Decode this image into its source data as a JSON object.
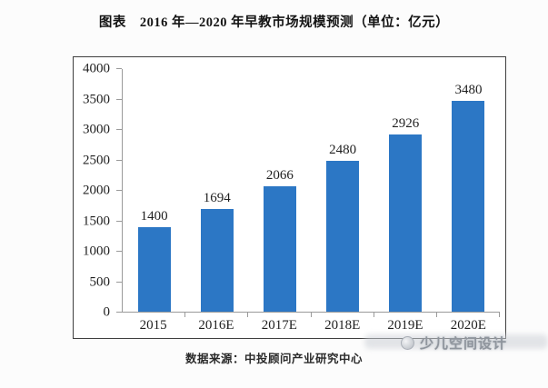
{
  "page": {
    "title": "图表　2016 年—2020 年早教市场规模预测（单位：亿元）",
    "footer_source": "数据来源：中投顾问产业研究中心",
    "watermark_text": "少儿空间设计"
  },
  "colors": {
    "bar": "#2C77C5",
    "axis_line": "#9A9A9A",
    "frame_border": "#3F3F3F",
    "label_text": "#1F1F1F",
    "watermark_text": "#8F959D",
    "watermark_bg": "#CDD1D7"
  },
  "chart_data": {
    "type": "bar",
    "title": "2016年—2020年早教市场规模预测",
    "unit": "亿元",
    "categories": [
      "2015",
      "2016E",
      "2017E",
      "2018E",
      "2019E",
      "2020E"
    ],
    "values": [
      1400,
      1694,
      2066,
      2480,
      2926,
      3480
    ],
    "value_labels": true,
    "ylim": [
      0,
      4000
    ],
    "yticks": [
      0,
      500,
      1000,
      1500,
      2000,
      2500,
      3000,
      3500,
      4000
    ],
    "grid": false,
    "legend": "none"
  }
}
